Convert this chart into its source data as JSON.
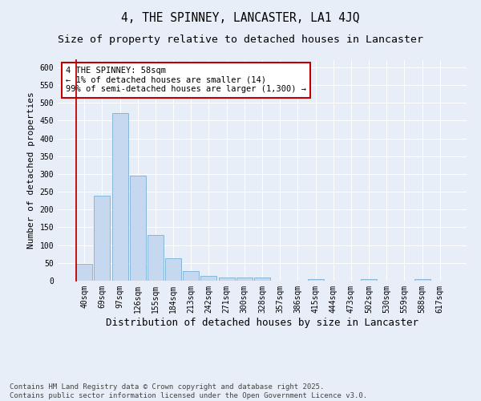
{
  "title": "4, THE SPINNEY, LANCASTER, LA1 4JQ",
  "subtitle": "Size of property relative to detached houses in Lancaster",
  "xlabel": "Distribution of detached houses by size in Lancaster",
  "ylabel": "Number of detached properties",
  "categories": [
    "40sqm",
    "69sqm",
    "97sqm",
    "126sqm",
    "155sqm",
    "184sqm",
    "213sqm",
    "242sqm",
    "271sqm",
    "300sqm",
    "328sqm",
    "357sqm",
    "386sqm",
    "415sqm",
    "444sqm",
    "473sqm",
    "502sqm",
    "530sqm",
    "559sqm",
    "588sqm",
    "617sqm"
  ],
  "values": [
    48,
    238,
    472,
    296,
    128,
    64,
    26,
    13,
    9,
    10,
    8,
    0,
    0,
    4,
    0,
    0,
    4,
    0,
    0,
    4,
    0
  ],
  "bar_color": "#c5d8f0",
  "bar_edge_color": "#7bafd4",
  "highlight_edge_color": "#c00000",
  "annotation_text": "4 THE SPINNEY: 58sqm\n← 1% of detached houses are smaller (14)\n99% of semi-detached houses are larger (1,300) →",
  "annotation_box_edge_color": "#c00000",
  "annotation_box_face_color": "#ffffff",
  "ylim": [
    0,
    620
  ],
  "yticks": [
    0,
    50,
    100,
    150,
    200,
    250,
    300,
    350,
    400,
    450,
    500,
    550,
    600
  ],
  "background_color": "#e8eef7",
  "footer_text": "Contains HM Land Registry data © Crown copyright and database right 2025.\nContains public sector information licensed under the Open Government Licence v3.0.",
  "title_fontsize": 10.5,
  "subtitle_fontsize": 9.5,
  "xlabel_fontsize": 9,
  "ylabel_fontsize": 8,
  "tick_fontsize": 7,
  "footer_fontsize": 6.5
}
